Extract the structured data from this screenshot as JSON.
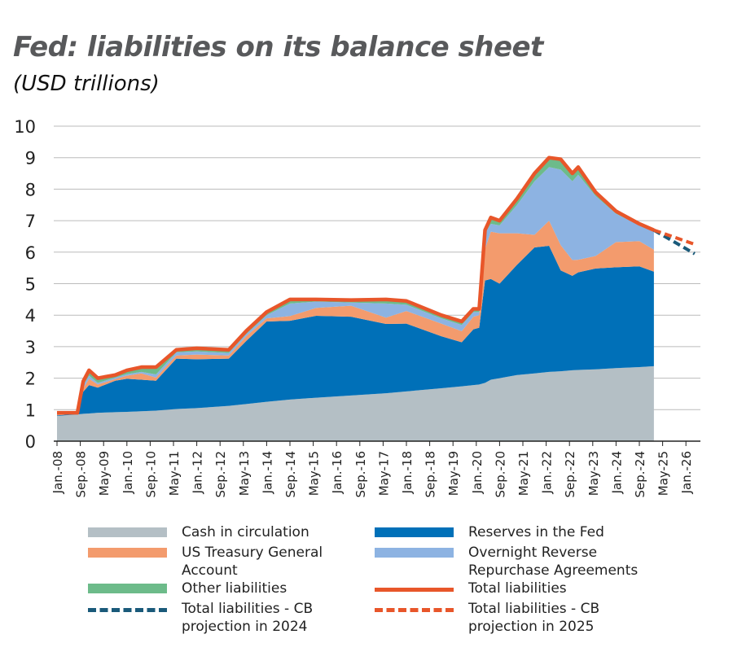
{
  "title": "Fed: liabilities on its balance sheet",
  "subtitle": "(USD trillions)",
  "chart_data": {
    "type": "area",
    "stacked": true,
    "title": "Fed: liabilities on its balance sheet",
    "ylabel": "(USD trillions)",
    "ylim": [
      0,
      10
    ],
    "yticks": [
      0,
      1,
      2,
      3,
      4,
      5,
      6,
      7,
      8,
      9,
      10
    ],
    "grid": "horizontal",
    "legend_placement": "bottom",
    "xtick_labels": [
      "Jan.-08",
      "Sep.-08",
      "May-09",
      "Jan.-10",
      "Sep.-10",
      "May-11",
      "Jan.-12",
      "Sep.-12",
      "May-13",
      "Jan.-14",
      "Sep.-14",
      "May-15",
      "Jan.-16",
      "Sep.-16",
      "May-17",
      "Jan.-18",
      "Sep.-18",
      "May-19",
      "Jan.-20",
      "Sep.-20",
      "May-21",
      "Jan.-22",
      "Sep.-22",
      "May-23",
      "Jan.-24",
      "Sep.-24",
      "May-25",
      "Jan.-26"
    ],
    "xtick_dates": [
      "2008-01",
      "2008-09",
      "2009-05",
      "2010-01",
      "2010-09",
      "2011-05",
      "2012-01",
      "2012-09",
      "2013-05",
      "2014-01",
      "2014-09",
      "2015-05",
      "2016-01",
      "2016-09",
      "2017-05",
      "2018-01",
      "2018-09",
      "2019-05",
      "2020-01",
      "2020-09",
      "2021-05",
      "2022-01",
      "2022-09",
      "2023-05",
      "2024-01",
      "2024-09",
      "2025-05",
      "2026-01"
    ],
    "x": [
      "2008-01",
      "2008-08",
      "2008-10",
      "2008-12",
      "2009-03",
      "2009-09",
      "2010-01",
      "2010-06",
      "2010-11",
      "2011-06",
      "2012-01",
      "2012-12",
      "2013-06",
      "2014-01",
      "2014-09",
      "2015-06",
      "2016-06",
      "2017-06",
      "2018-01",
      "2019-01",
      "2019-08",
      "2019-12",
      "2020-02",
      "2020-04",
      "2020-06",
      "2020-09",
      "2021-03",
      "2021-09",
      "2022-02",
      "2022-06",
      "2022-10",
      "2022-12",
      "2023-06",
      "2024-01",
      "2024-09",
      "2025-02"
    ],
    "series": [
      {
        "name": "Cash in circulation",
        "color": "#b4bfc5",
        "values": [
          0.8,
          0.85,
          0.87,
          0.88,
          0.9,
          0.92,
          0.93,
          0.95,
          0.97,
          1.02,
          1.05,
          1.12,
          1.18,
          1.25,
          1.32,
          1.38,
          1.45,
          1.52,
          1.58,
          1.68,
          1.74,
          1.78,
          1.8,
          1.85,
          1.95,
          2.0,
          2.1,
          2.15,
          2.2,
          2.22,
          2.25,
          2.26,
          2.28,
          2.32,
          2.35,
          2.38
        ]
      },
      {
        "name": "Reserves in the Fed",
        "color": "#0070b8",
        "values": [
          0.02,
          0.02,
          0.7,
          0.9,
          0.8,
          1.0,
          1.05,
          1.0,
          0.95,
          1.6,
          1.55,
          1.5,
          2.0,
          2.55,
          2.5,
          2.6,
          2.5,
          2.2,
          2.15,
          1.65,
          1.4,
          1.77,
          1.8,
          3.25,
          3.2,
          3.0,
          3.5,
          4.0,
          4.0,
          3.2,
          3.0,
          3.1,
          3.2,
          3.2,
          3.2,
          3.0
        ]
      },
      {
        "name": "US Treasury General Account",
        "color": "#f39b6d",
        "values": [
          0.02,
          0.02,
          0.1,
          0.2,
          0.1,
          0.05,
          0.1,
          0.2,
          0.1,
          0.1,
          0.15,
          0.1,
          0.15,
          0.1,
          0.15,
          0.25,
          0.35,
          0.2,
          0.4,
          0.4,
          0.35,
          0.4,
          0.4,
          1.0,
          1.5,
          1.6,
          1.0,
          0.4,
          0.8,
          0.8,
          0.5,
          0.4,
          0.4,
          0.8,
          0.8,
          0.7
        ]
      },
      {
        "name": "Overnight Reverse Repurchase Agreements",
        "color": "#8db3e2",
        "values": [
          0.02,
          0.0,
          0.1,
          0.1,
          0.05,
          0.05,
          0.05,
          0.05,
          0.1,
          0.1,
          0.1,
          0.08,
          0.07,
          0.1,
          0.4,
          0.2,
          0.1,
          0.45,
          0.2,
          0.17,
          0.2,
          0.15,
          0.1,
          0.5,
          0.25,
          0.25,
          0.9,
          1.7,
          1.7,
          2.4,
          2.5,
          2.7,
          1.9,
          0.9,
          0.5,
          0.6
        ]
      },
      {
        "name": "Other liabilities",
        "color": "#6dbb8a",
        "values": [
          0.04,
          0.01,
          0.13,
          0.17,
          0.15,
          0.08,
          0.12,
          0.15,
          0.23,
          0.08,
          0.1,
          0.1,
          0.1,
          0.1,
          0.13,
          0.07,
          0.08,
          0.13,
          0.12,
          0.1,
          0.11,
          0.1,
          0.1,
          0.1,
          0.2,
          0.15,
          0.2,
          0.25,
          0.3,
          0.33,
          0.25,
          0.24,
          0.12,
          0.08,
          0.05,
          0.02
        ]
      }
    ],
    "lines": [
      {
        "name": "Total liabilities",
        "color": "#e8562a",
        "style": "solid",
        "x": [
          "2008-01",
          "2008-08",
          "2008-10",
          "2008-12",
          "2009-03",
          "2009-09",
          "2010-01",
          "2010-06",
          "2010-11",
          "2011-06",
          "2012-01",
          "2012-12",
          "2013-06",
          "2014-01",
          "2014-09",
          "2015-06",
          "2016-06",
          "2017-06",
          "2018-01",
          "2019-01",
          "2019-08",
          "2019-12",
          "2020-02",
          "2020-04",
          "2020-06",
          "2020-09",
          "2021-03",
          "2021-09",
          "2022-02",
          "2022-06",
          "2022-10",
          "2022-12",
          "2023-06",
          "2024-01",
          "2024-09",
          "2025-02"
        ],
        "values": [
          0.9,
          0.9,
          1.9,
          2.25,
          2.0,
          2.1,
          2.25,
          2.35,
          2.35,
          2.9,
          2.95,
          2.9,
          3.5,
          4.1,
          4.5,
          4.5,
          4.48,
          4.5,
          4.45,
          4.0,
          3.8,
          4.2,
          4.2,
          6.7,
          7.1,
          7.0,
          7.7,
          8.5,
          9.0,
          8.95,
          8.5,
          8.7,
          7.9,
          7.3,
          6.9,
          6.7
        ]
      },
      {
        "name": "Total liabilities - CB projection in 2024",
        "color": "#1a5a7a",
        "style": "dashed",
        "x": [
          "2025-02",
          "2026-04"
        ],
        "values": [
          6.7,
          5.95
        ]
      },
      {
        "name": "Total liabilities - CB projection in 2025",
        "color": "#e8562a",
        "style": "dashed",
        "x": [
          "2025-02",
          "2026-04"
        ],
        "values": [
          6.7,
          6.25
        ]
      }
    ]
  },
  "legend": [
    {
      "label": "Cash in circulation",
      "color": "#b4bfc5",
      "kind": "area"
    },
    {
      "label": "Reserves in the Fed",
      "color": "#0070b8",
      "kind": "area"
    },
    {
      "label": "US Treasury General Account",
      "color": "#f39b6d",
      "kind": "area"
    },
    {
      "label": "Overnight Reverse Repurchase Agreements",
      "color": "#8db3e2",
      "kind": "area"
    },
    {
      "label": "Other liabilities",
      "color": "#6dbb8a",
      "kind": "area"
    },
    {
      "label": "Total liabilities",
      "color": "#e8562a",
      "kind": "line"
    },
    {
      "label": "Total liabilities - CB projection in 2024",
      "color": "#1a5a7a",
      "kind": "dashed"
    },
    {
      "label": "Total liabilities - CB projection in 2025",
      "color": "#e8562a",
      "kind": "dashed"
    }
  ]
}
